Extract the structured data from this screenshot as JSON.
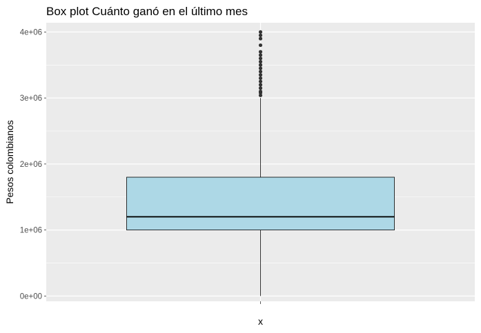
{
  "chart_data": {
    "type": "box",
    "title": "Box plot Cuánto ganó en el último mes",
    "xlabel": "",
    "ylabel": "Pesos colombianos",
    "ylim": [
      -80000,
      4140000
    ],
    "y_ticks": [
      0,
      1000000,
      2000000,
      3000000,
      4000000
    ],
    "y_tick_labels": [
      "0e+00",
      "1e+06",
      "2e+06",
      "3e+06",
      "4e+06"
    ],
    "x_tick_labels": [
      "x"
    ],
    "grid": true,
    "colors": {
      "panel": "#ebebeb",
      "grid": "#ffffff",
      "box_fill": "#add8e6",
      "box_line": "#000000",
      "outlier": "#333333"
    },
    "box": {
      "category": "x",
      "lower_whisker": 0,
      "q1": 1000000,
      "median": 1200000,
      "q3": 1800000,
      "upper_whisker": 3000000
    },
    "outliers": [
      3040000,
      3080000,
      3100000,
      3150000,
      3200000,
      3250000,
      3300000,
      3350000,
      3400000,
      3450000,
      3500000,
      3550000,
      3600000,
      3650000,
      3700000,
      3800000,
      3900000,
      3950000,
      4000000
    ]
  }
}
